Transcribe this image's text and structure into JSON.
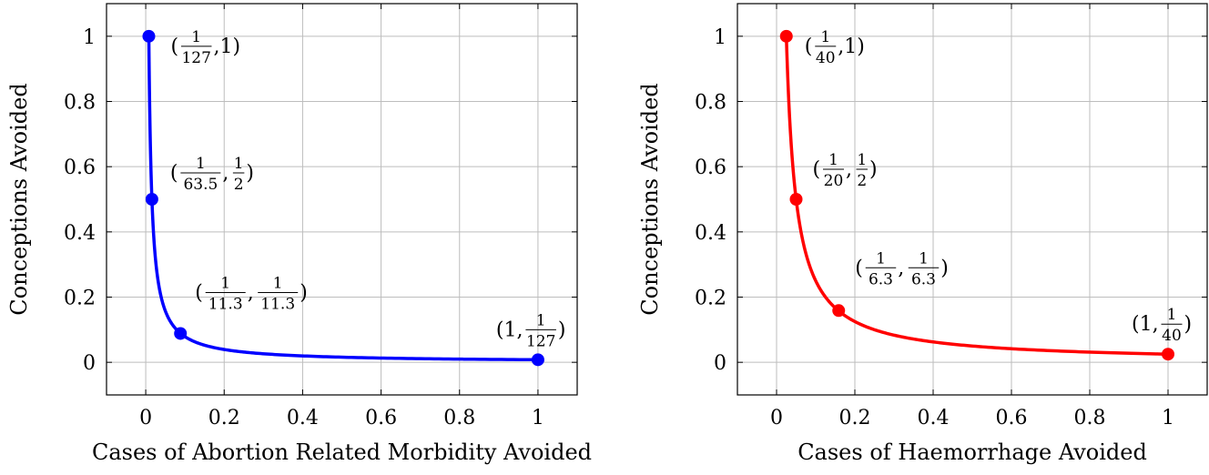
{
  "chart_data": [
    {
      "type": "line",
      "xlabel": "Cases of Abortion Related Morbidity Avoided",
      "ylabel": "Conceptions Avoided",
      "xlim": [
        -0.1,
        1.1
      ],
      "ylim": [
        -0.1,
        1.1
      ],
      "xticks": [
        "0",
        "0.2",
        "0.4",
        "0.6",
        "0.8",
        "1"
      ],
      "yticks": [
        "0",
        "0.2",
        "0.4",
        "0.6",
        "0.8",
        "1"
      ],
      "grid": true,
      "color": "#0000ff",
      "curve": "xy = 1/127",
      "points": [
        {
          "x": 0.00787,
          "y": 1,
          "label": [
            "(",
            "1",
            "127",
            ",1)"
          ]
        },
        {
          "x": 0.01575,
          "y": 0.5,
          "label": [
            "(",
            "1",
            "63.5",
            ",",
            "1",
            "2",
            ")"
          ]
        },
        {
          "x": 0.0885,
          "y": 0.0885,
          "label": [
            "(",
            "1",
            "11.3",
            ",",
            "1",
            "11.3",
            ")"
          ]
        },
        {
          "x": 1,
          "y": 0.00787,
          "label": [
            "(1,",
            "1",
            "127",
            ")"
          ]
        }
      ]
    },
    {
      "type": "line",
      "xlabel": "Cases of Haemorrhage Avoided",
      "ylabel": "Conceptions Avoided",
      "xlim": [
        -0.1,
        1.1
      ],
      "ylim": [
        -0.1,
        1.1
      ],
      "xticks": [
        "0",
        "0.2",
        "0.4",
        "0.6",
        "0.8",
        "1"
      ],
      "yticks": [
        "0",
        "0.2",
        "0.4",
        "0.6",
        "0.8",
        "1"
      ],
      "grid": true,
      "color": "#ff0000",
      "curve": "xy = 1/40",
      "points": [
        {
          "x": 0.025,
          "y": 1,
          "label": [
            "(",
            "1",
            "40",
            ",1)"
          ]
        },
        {
          "x": 0.05,
          "y": 0.5,
          "label": [
            "(",
            "1",
            "20",
            ",",
            "1",
            "2",
            ")"
          ]
        },
        {
          "x": 0.1587,
          "y": 0.1587,
          "label": [
            "(",
            "1",
            "6.3",
            ",",
            "1",
            "6.3",
            ")"
          ]
        },
        {
          "x": 1,
          "y": 0.025,
          "label": [
            "(1,",
            "1",
            "40",
            ")"
          ]
        }
      ]
    }
  ]
}
